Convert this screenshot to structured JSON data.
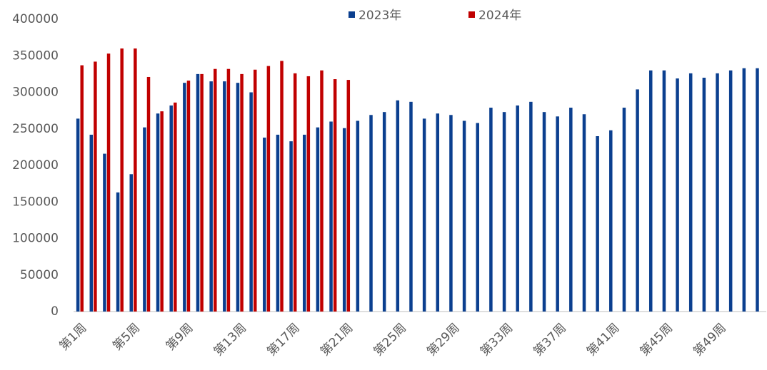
{
  "chart_data": {
    "type": "bar",
    "categories": [
      "第1周",
      null,
      null,
      null,
      "第5周",
      null,
      null,
      null,
      "第9周",
      null,
      null,
      null,
      "第13周",
      null,
      null,
      null,
      "第17周",
      null,
      null,
      null,
      "第21周",
      null,
      null,
      null,
      "第25周",
      null,
      null,
      null,
      "第29周",
      null,
      null,
      null,
      "第33周",
      null,
      null,
      null,
      "第37周",
      null,
      null,
      null,
      "第41周",
      null,
      null,
      null,
      "第45周",
      null,
      null,
      null,
      "第49周",
      null,
      null,
      null
    ],
    "series": [
      {
        "name": "2023年",
        "color": "#0b3f8f",
        "values": [
          264000,
          242000,
          216000,
          163000,
          188000,
          252000,
          271000,
          282000,
          313000,
          325000,
          315000,
          315000,
          313000,
          300000,
          238000,
          242000,
          233000,
          242000,
          252000,
          260000,
          251000,
          261000,
          269000,
          273000,
          289000,
          287000,
          264000,
          271000,
          269000,
          261000,
          258000,
          279000,
          273000,
          282000,
          287000,
          273000,
          267000,
          279000,
          270000,
          240000,
          248000,
          279000,
          304000,
          330000,
          330000,
          319000,
          326000,
          320000,
          326000,
          330000,
          333000,
          333000
        ]
      },
      {
        "name": "2024年",
        "color": "#c00000",
        "values": [
          337000,
          342000,
          353000,
          360000,
          360000,
          321000,
          274000,
          286000,
          316000,
          325000,
          332000,
          332000,
          325000,
          331000,
          336000,
          343000,
          326000,
          322000,
          330000,
          318000,
          317000,
          null,
          null,
          null,
          null,
          null,
          null,
          null,
          null,
          null,
          null,
          null,
          null,
          null,
          null,
          null,
          null,
          null,
          null,
          null,
          null,
          null,
          null,
          null,
          null,
          null,
          null,
          null,
          null,
          null,
          null,
          null
        ]
      }
    ],
    "ylim": [
      0,
      400000
    ],
    "yticks": [
      0,
      50000,
      100000,
      150000,
      200000,
      250000,
      300000,
      350000,
      400000
    ],
    "grid": false,
    "legend": "top"
  }
}
